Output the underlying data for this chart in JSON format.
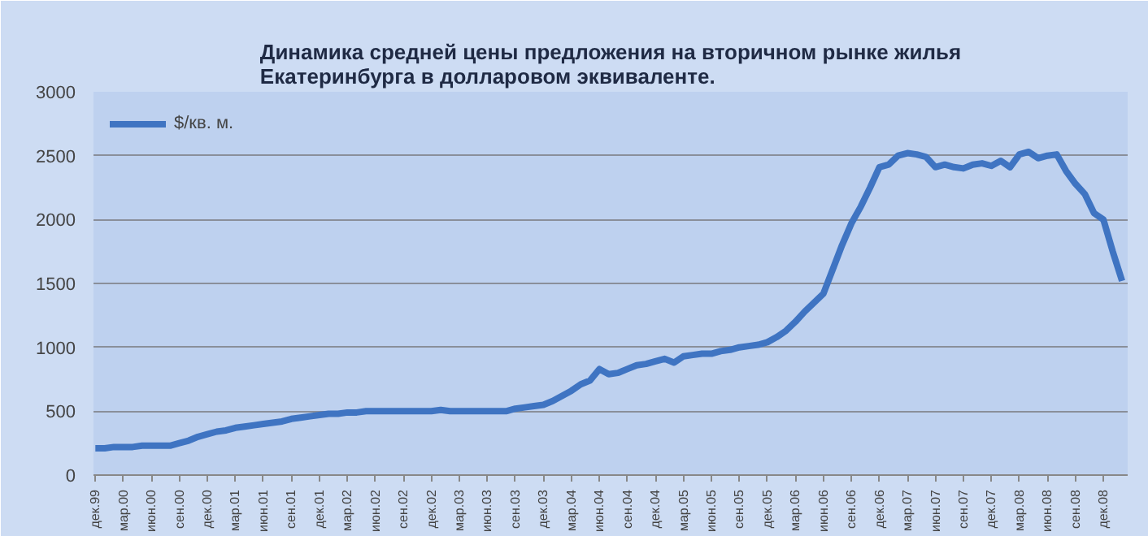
{
  "chart_data": {
    "type": "line",
    "title": "Динамика средней цены предложения на вторичном рынке жилья\nЕкатеринбурга в долларовом эквиваленте.",
    "categories": [
      "дек.99",
      null,
      null,
      "мар.00",
      null,
      null,
      "июн.00",
      null,
      null,
      "сен.00",
      null,
      null,
      "дек.00",
      null,
      null,
      "мар.01",
      null,
      null,
      "июн.01",
      null,
      null,
      "сен.01",
      null,
      null,
      "дек.01",
      null,
      null,
      "мар.02",
      null,
      null,
      "июн.02",
      null,
      null,
      "сен.02",
      null,
      null,
      "дек.02",
      null,
      null,
      "мар.03",
      null,
      null,
      "июн.03",
      null,
      null,
      "сен.03",
      null,
      null,
      "дек.03",
      null,
      null,
      "мар.04",
      null,
      null,
      "июн.04",
      null,
      null,
      "сен.04",
      null,
      null,
      "дек.04",
      null,
      null,
      "мар.05",
      null,
      null,
      "июн.05",
      null,
      null,
      "сен.05",
      null,
      null,
      "дек.05",
      null,
      null,
      "мар.06",
      null,
      null,
      "июн.06",
      null,
      null,
      "сен.06",
      null,
      null,
      "дек.06",
      null,
      null,
      "мар.07",
      null,
      null,
      "июн.07",
      null,
      null,
      "сен.07",
      null,
      null,
      "дек.07",
      null,
      null,
      "мар.08",
      null,
      null,
      "июн.08",
      null,
      null,
      "сен.08",
      null,
      null,
      "дек.08",
      null,
      null
    ],
    "series": [
      {
        "name": "$/кв. м.",
        "color": "#3f74c2",
        "values": [
          210,
          210,
          220,
          220,
          220,
          230,
          230,
          230,
          230,
          250,
          270,
          300,
          320,
          340,
          350,
          370,
          380,
          390,
          400,
          410,
          420,
          440,
          450,
          460,
          470,
          480,
          480,
          490,
          490,
          500,
          500,
          500,
          500,
          500,
          500,
          500,
          500,
          510,
          500,
          500,
          500,
          500,
          500,
          500,
          500,
          520,
          530,
          540,
          550,
          580,
          620,
          660,
          710,
          740,
          830,
          790,
          800,
          830,
          860,
          870,
          890,
          910,
          880,
          930,
          940,
          950,
          950,
          970,
          980,
          1000,
          1010,
          1020,
          1040,
          1080,
          1130,
          1200,
          1280,
          1350,
          1420,
          1610,
          1800,
          1970,
          2100,
          2250,
          2410,
          2430,
          2500,
          2520,
          2510,
          2490,
          2410,
          2430,
          2410,
          2400,
          2430,
          2440,
          2420,
          2460,
          2410,
          2510,
          2530,
          2480,
          2500,
          2510,
          2380,
          2280,
          2200,
          2050,
          2000,
          1750,
          1520
        ]
      }
    ],
    "ylim": [
      0,
      3000
    ],
    "yticks": [
      0,
      500,
      1000,
      1500,
      2000,
      2500,
      3000
    ],
    "grid": "y",
    "legend": "top left",
    "marker": "none",
    "line_style": "solid"
  }
}
